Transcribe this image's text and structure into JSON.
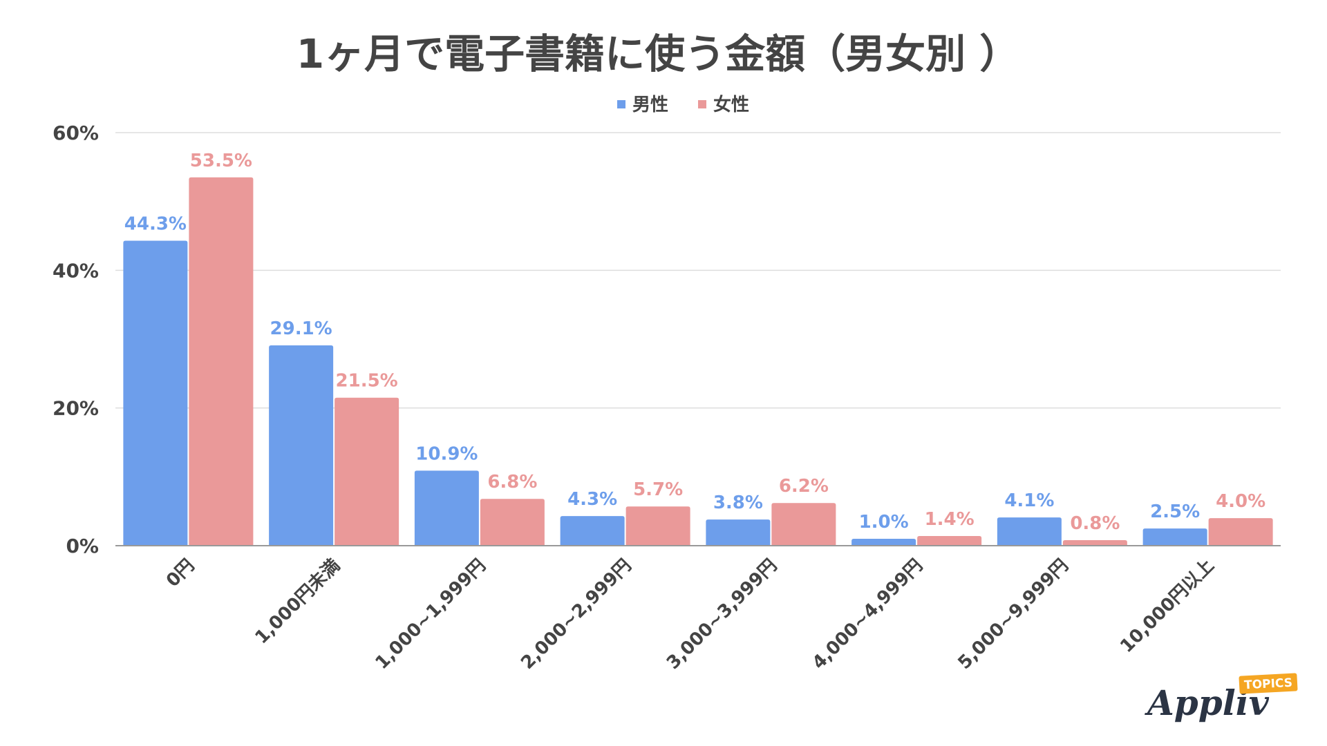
{
  "chart_data": {
    "type": "bar",
    "title": "1ヶ月で電子書籍に使う金額（男女別 ）",
    "categories": [
      "0円",
      "1,000円未満",
      "1,000~1,999円",
      "2,000~2,999円",
      "3,000~3,999円",
      "4,000~4,999円",
      "5,000~9,999円",
      "10,000円以上"
    ],
    "series": [
      {
        "name": "男性",
        "color": "#6d9eeb",
        "values": [
          44.3,
          29.1,
          10.9,
          4.3,
          3.8,
          1.0,
          4.1,
          2.5
        ],
        "labels": [
          "44.3%",
          "29.1%",
          "10.9%",
          "4.3%",
          "3.8%",
          "1.0%",
          "4.1%",
          "2.5%"
        ]
      },
      {
        "name": "女性",
        "color": "#ea9999",
        "values": [
          53.5,
          21.5,
          6.8,
          5.7,
          6.2,
          1.4,
          0.8,
          4.0
        ],
        "labels": [
          "53.5%",
          "21.5%",
          "6.8%",
          "5.7%",
          "6.2%",
          "1.4%",
          "0.8%",
          "4.0%"
        ]
      }
    ],
    "ylim": [
      0,
      60
    ],
    "yticks": [
      0,
      20,
      40,
      60
    ],
    "ytick_labels": [
      "0%",
      "20%",
      "40%",
      "60%"
    ],
    "xlabel": "",
    "ylabel": "",
    "grid": true,
    "legend_position": "top-center"
  },
  "branding": {
    "logo_text": "Appliv",
    "logo_badge": "TOPICS",
    "badge_color": "#f5a623"
  }
}
